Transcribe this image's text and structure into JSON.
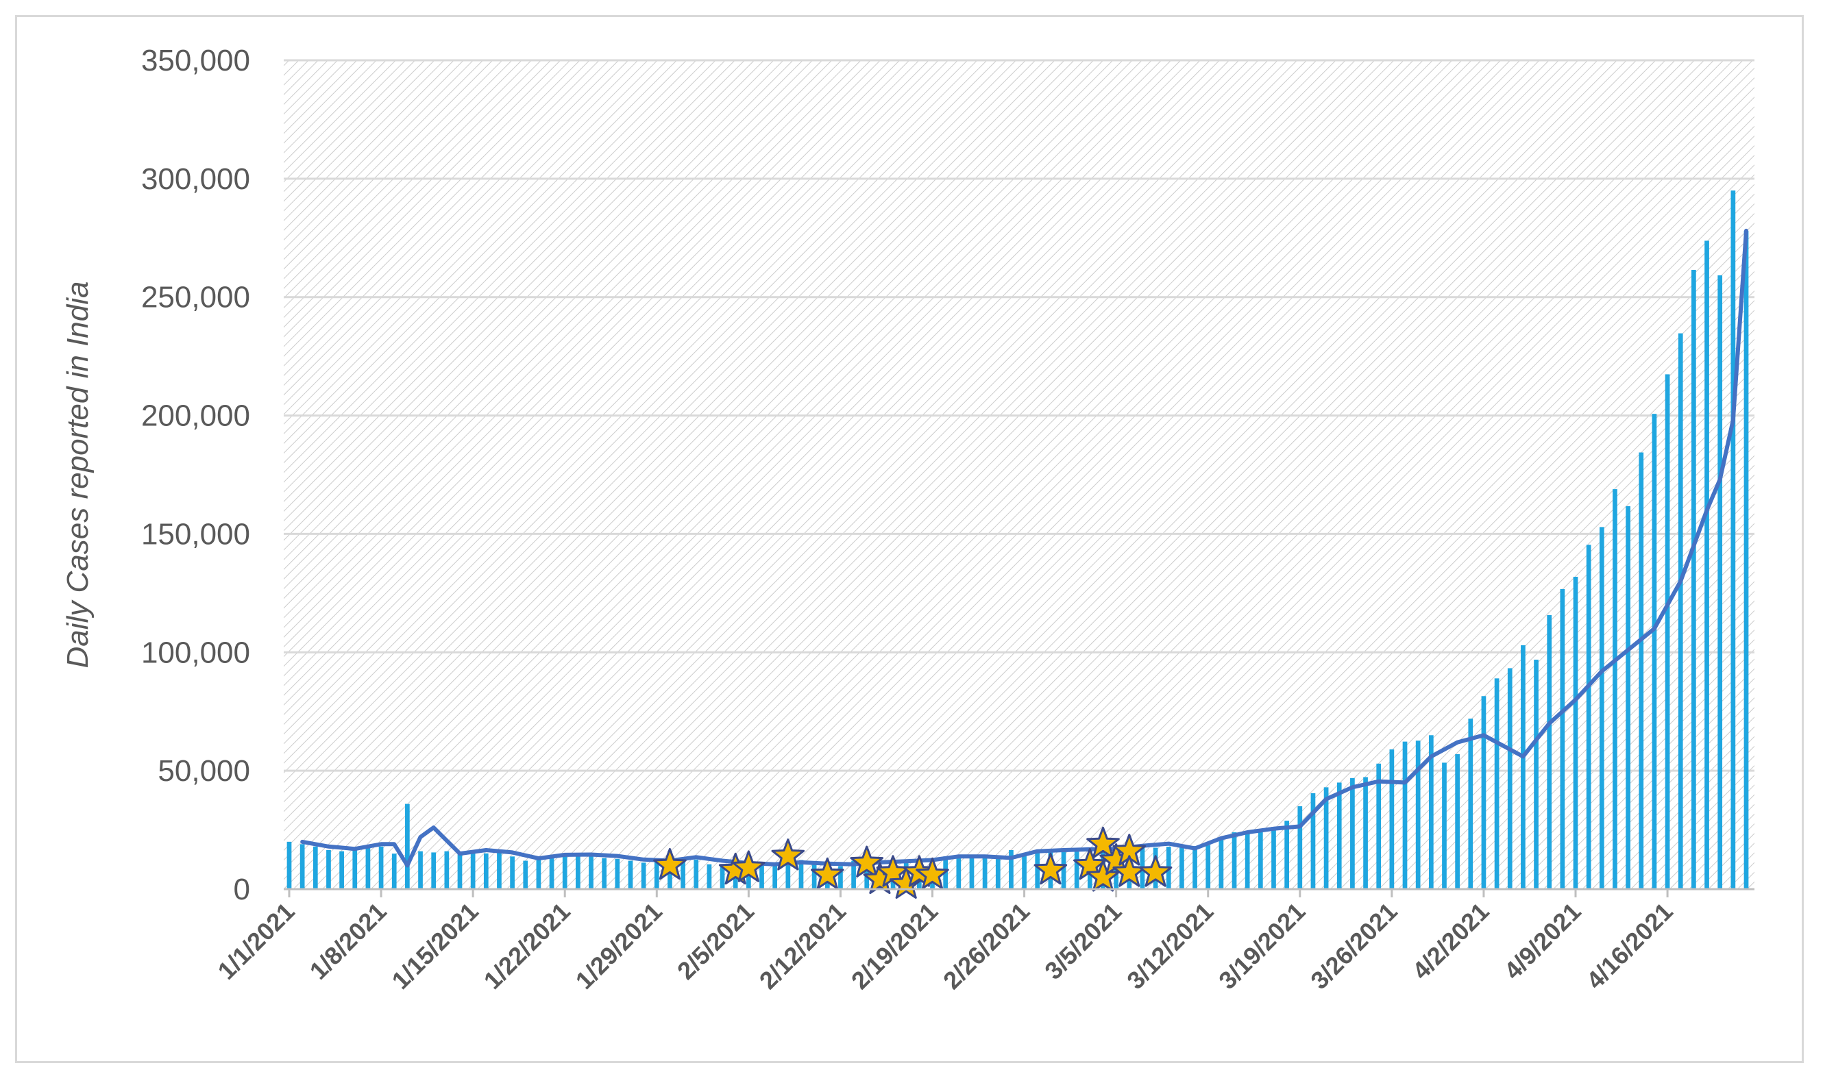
{
  "chart_data": {
    "type": "bar",
    "ylabel": "Daily Cases reported in India",
    "xlabel": "",
    "title": "",
    "ylim": [
      0,
      350000
    ],
    "yticks": [
      0,
      50000,
      100000,
      150000,
      200000,
      250000,
      300000,
      350000
    ],
    "ytick_labels": [
      "0",
      "50,000",
      "100,000",
      "150,000",
      "200,000",
      "250,000",
      "300,000",
      "350,000"
    ],
    "x_start": "2021-01-01",
    "x_end": "2021-04-22",
    "xtick_labels": [
      "1/1/2021",
      "1/8/2021",
      "1/15/2021",
      "1/22/2021",
      "1/29/2021",
      "2/5/2021",
      "2/12/2021",
      "2/19/2021",
      "2/26/2021",
      "3/5/2021",
      "3/12/2021",
      "3/19/2021",
      "3/26/2021",
      "4/2/2021",
      "4/9/2021",
      "4/16/2021"
    ],
    "xtick_dates": [
      "2021-01-01",
      "2021-01-08",
      "2021-01-15",
      "2021-01-22",
      "2021-01-29",
      "2021-02-05",
      "2021-02-12",
      "2021-02-19",
      "2021-02-26",
      "2021-03-05",
      "2021-03-12",
      "2021-03-19",
      "2021-03-26",
      "2021-04-02",
      "2021-04-09",
      "2021-04-16"
    ],
    "grid": true,
    "series": [
      {
        "type": "bar",
        "color": "#1fa6e0",
        "x": [
          "2021-01-01",
          "2021-01-02",
          "2021-01-03",
          "2021-01-04",
          "2021-01-05",
          "2021-01-06",
          "2021-01-07",
          "2021-01-08",
          "2021-01-09",
          "2021-01-10",
          "2021-01-11",
          "2021-01-12",
          "2021-01-13",
          "2021-01-14",
          "2021-01-15",
          "2021-01-16",
          "2021-01-17",
          "2021-01-18",
          "2021-01-19",
          "2021-01-20",
          "2021-01-21",
          "2021-01-22",
          "2021-01-23",
          "2021-01-24",
          "2021-01-25",
          "2021-01-26",
          "2021-01-27",
          "2021-01-28",
          "2021-01-29",
          "2021-01-30",
          "2021-01-31",
          "2021-02-01",
          "2021-02-02",
          "2021-02-03",
          "2021-02-04",
          "2021-02-05",
          "2021-02-06",
          "2021-02-07",
          "2021-02-08",
          "2021-02-09",
          "2021-02-10",
          "2021-02-11",
          "2021-02-12",
          "2021-02-13",
          "2021-02-14",
          "2021-02-15",
          "2021-02-16",
          "2021-02-17",
          "2021-02-18",
          "2021-02-19",
          "2021-02-20",
          "2021-02-21",
          "2021-02-22",
          "2021-02-23",
          "2021-02-24",
          "2021-02-25",
          "2021-02-26",
          "2021-02-27",
          "2021-02-28",
          "2021-03-01",
          "2021-03-02",
          "2021-03-03",
          "2021-03-04",
          "2021-03-05",
          "2021-03-06",
          "2021-03-07",
          "2021-03-08",
          "2021-03-09",
          "2021-03-10",
          "2021-03-11",
          "2021-03-12",
          "2021-03-13",
          "2021-03-14",
          "2021-03-15",
          "2021-03-16",
          "2021-03-17",
          "2021-03-18",
          "2021-03-19",
          "2021-03-20",
          "2021-03-21",
          "2021-03-22",
          "2021-03-23",
          "2021-03-24",
          "2021-03-25",
          "2021-03-26",
          "2021-03-27",
          "2021-03-28",
          "2021-03-29",
          "2021-03-30",
          "2021-03-31",
          "2021-04-01",
          "2021-04-02",
          "2021-04-03",
          "2021-04-04",
          "2021-04-05",
          "2021-04-06",
          "2021-04-07",
          "2021-04-08",
          "2021-04-09",
          "2021-04-10",
          "2021-04-11",
          "2021-04-12",
          "2021-04-13",
          "2021-04-14",
          "2021-04-15",
          "2021-04-16",
          "2021-04-17",
          "2021-04-18",
          "2021-04-19",
          "2021-04-20",
          "2021-04-21",
          "2021-04-22"
        ],
        "values": [
          20000,
          19000,
          18000,
          16500,
          16000,
          17000,
          18000,
          18000,
          15000,
          36000,
          16000,
          15500,
          16000,
          15600,
          15500,
          15100,
          15300,
          13800,
          12000,
          13500,
          14500,
          14300,
          14800,
          14200,
          13100,
          12800,
          12000,
          11200,
          12000,
          16000,
          13000,
          12500,
          10500,
          10600,
          10100,
          9500,
          10300,
          11200,
          10800,
          12300,
          11000,
          9500,
          9700,
          12000,
          11600,
          9500,
          10000,
          11500,
          12000,
          13000,
          13800,
          14300,
          14000,
          14100,
          14300,
          16500,
          15000,
          16500,
          16000,
          15800,
          16700,
          17000,
          16500,
          16800,
          16000,
          18500,
          17500,
          17900,
          18300,
          18200,
          18600,
          22000,
          24000,
          24300,
          25000,
          26300,
          28900,
          35000,
          40500,
          43000,
          45000,
          46900,
          47300,
          53000,
          59000,
          62300,
          62700,
          65000,
          53400,
          57000,
          72000,
          81500,
          89000,
          93300,
          103000,
          96900,
          115700,
          126700,
          131900,
          145400,
          152900,
          168900,
          161700,
          184400,
          200700,
          217400,
          234700,
          261500,
          273800,
          259200,
          295000,
          278000
        ],
        "peak_note": ""
      },
      {
        "type": "line",
        "color": "#4472c4",
        "x": [
          "2021-01-02",
          "2021-01-05",
          "2021-01-08",
          "2021-01-09",
          "2021-01-11",
          "2021-01-12",
          "2021-01-13",
          "2021-01-15",
          "2021-01-17",
          "2021-01-19",
          "2021-01-22",
          "2021-01-25",
          "2021-01-28",
          "2021-01-30",
          "2021-02-02",
          "2021-02-05",
          "2021-02-09",
          "2021-02-13",
          "2021-02-17",
          "2021-02-20",
          "2021-02-24",
          "2021-02-27",
          "2021-03-02",
          "2021-03-05",
          "2021-03-07",
          "2021-03-10",
          "2021-03-12",
          "2021-03-14",
          "2021-03-17",
          "2021-03-19",
          "2021-03-20",
          "2021-03-22",
          "2021-03-24",
          "2021-03-26",
          "2021-03-28",
          "2021-03-30",
          "2021-04-01",
          "2021-04-02",
          "2021-04-04",
          "2021-04-06",
          "2021-04-09",
          "2021-04-12",
          "2021-04-14",
          "2021-04-17",
          "2021-04-19",
          "2021-04-20",
          "2021-04-21",
          "2021-04-22"
        ],
        "values": [
          20000,
          17000,
          19000,
          9000,
          21000,
          26000,
          15000,
          16500,
          15000,
          12000,
          14500,
          14000,
          11000,
          14000,
          12000,
          10500,
          11000,
          10000,
          12000,
          14000,
          12500,
          15000,
          16500,
          16000,
          18000,
          19000,
          17000,
          22000,
          25000,
          26000,
          33000,
          40000,
          43000,
          45000,
          50000,
          56000,
          62000,
          64000,
          60000,
          56000,
          70000,
          82000,
          93000,
          101000,
          110000,
          132000,
          158000,
          173000
        ],
        "note": ""
      }
    ],
    "line_x": [
      "2021-01-02",
      "2021-01-04",
      "2021-01-06",
      "2021-01-08",
      "2021-01-09",
      "2021-01-10",
      "2021-01-11",
      "2021-01-12",
      "2021-01-14",
      "2021-01-16",
      "2021-01-18",
      "2021-01-20",
      "2021-01-22",
      "2021-01-24",
      "2021-01-26",
      "2021-01-28",
      "2021-01-30",
      "2021-02-01",
      "2021-02-03",
      "2021-02-05",
      "2021-02-07",
      "2021-02-09",
      "2021-02-11",
      "2021-02-13",
      "2021-02-15",
      "2021-02-17",
      "2021-02-19",
      "2021-02-21",
      "2021-02-23",
      "2021-02-25",
      "2021-02-27",
      "2021-03-01",
      "2021-03-03",
      "2021-03-05",
      "2021-03-07",
      "2021-03-09",
      "2021-03-11",
      "2021-03-13",
      "2021-03-15",
      "2021-03-17",
      "2021-03-19",
      "2021-03-21",
      "2021-03-23",
      "2021-03-25",
      "2021-03-27",
      "2021-03-29",
      "2021-03-31",
      "2021-04-01",
      "2021-04-02",
      "2021-04-03",
      "2021-04-05",
      "2021-04-07",
      "2021-04-09",
      "2021-04-11",
      "2021-04-13",
      "2021-04-15",
      "2021-04-17",
      "2021-04-19",
      "2021-04-20",
      "2021-04-21",
      "2021-04-22"
    ],
    "line_values": [
      20000,
      18000,
      17000,
      19000,
      19000,
      10000,
      22000,
      26000,
      15000,
      16500,
      15500,
      13000,
      14500,
      14600,
      14000,
      12500,
      12000,
      13500,
      12000,
      11000,
      10500,
      11300,
      10800,
      10500,
      11300,
      11800,
      12300,
      13800,
      13800,
      13200,
      16000,
      16500,
      16800,
      17000,
      18300,
      19200,
      17200,
      21500,
      24000,
      25500,
      26500,
      38000,
      43000,
      45500,
      45000,
      56000,
      62000,
      63500,
      65000,
      62000,
      56000,
      70000,
      80000,
      92000,
      101000,
      110000,
      130000,
      160000,
      173000,
      198000,
      278000
    ],
    "stars": [
      {
        "x": "2021-01-30",
        "y": 10000
      },
      {
        "x": "2021-02-04",
        "y": 8000
      },
      {
        "x": "2021-02-05",
        "y": 9000
      },
      {
        "x": "2021-02-08",
        "y": 14000
      },
      {
        "x": "2021-02-11",
        "y": 6000
      },
      {
        "x": "2021-02-14",
        "y": 11000
      },
      {
        "x": "2021-02-15",
        "y": 4000
      },
      {
        "x": "2021-02-16",
        "y": 7000
      },
      {
        "x": "2021-02-17",
        "y": 2000
      },
      {
        "x": "2021-02-18",
        "y": 7000
      },
      {
        "x": "2021-02-19",
        "y": 6000
      },
      {
        "x": "2021-02-28",
        "y": 8000
      },
      {
        "x": "2021-03-03",
        "y": 10000
      },
      {
        "x": "2021-03-04",
        "y": 5000
      },
      {
        "x": "2021-03-04",
        "y": 19000
      },
      {
        "x": "2021-03-05",
        "y": 12000
      },
      {
        "x": "2021-03-06",
        "y": 16000
      },
      {
        "x": "2021-03-06",
        "y": 7000
      },
      {
        "x": "2021-03-08",
        "y": 7000
      }
    ]
  },
  "colors": {
    "bar": "#1fa6e0",
    "line": "#4472c4",
    "star_fill": "#f4b800",
    "star_stroke": "#3a4a8a",
    "grid": "#d9d9d9",
    "axis": "#bfbfbf",
    "text": "#595959",
    "hatch": "#c8c8c8"
  }
}
